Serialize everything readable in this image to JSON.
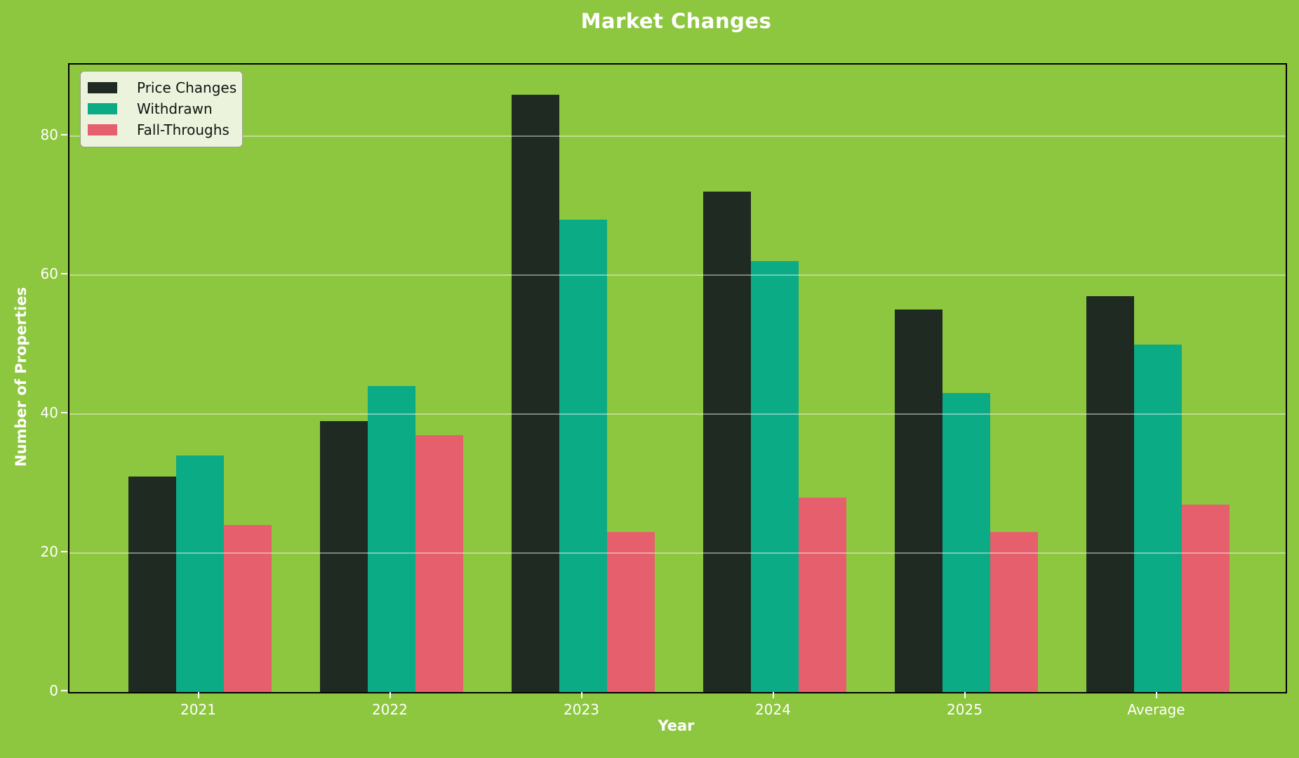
{
  "chart_data": {
    "type": "bar",
    "title": "Market Changes",
    "xlabel": "Year",
    "ylabel": "Number of Properties",
    "categories": [
      "2021",
      "2022",
      "2023",
      "2024",
      "2025",
      "Average"
    ],
    "series": [
      {
        "name": "Price Changes",
        "color": "#1e2a22",
        "values": [
          31,
          39,
          86,
          72,
          55,
          57
        ]
      },
      {
        "name": "Withdrawn",
        "color": "#0bab85",
        "values": [
          34,
          44,
          68,
          62,
          43,
          50
        ]
      },
      {
        "name": "Fall-Throughs",
        "color": "#e5606c",
        "values": [
          24,
          37,
          23,
          28,
          23,
          27
        ]
      }
    ],
    "yticks": [
      0,
      20,
      40,
      60,
      80
    ],
    "ylim": [
      0,
      90.3
    ],
    "grid": "horizontal",
    "legend_position": "upper left",
    "colors": {
      "background": "#8dc63f",
      "text": "#ffffff",
      "spine": "#000000",
      "gridline": "rgba(255,255,255,0.42)",
      "legend_background": "#ecf3dd",
      "legend_border": "#97a089",
      "legend_text": "#101510"
    }
  }
}
